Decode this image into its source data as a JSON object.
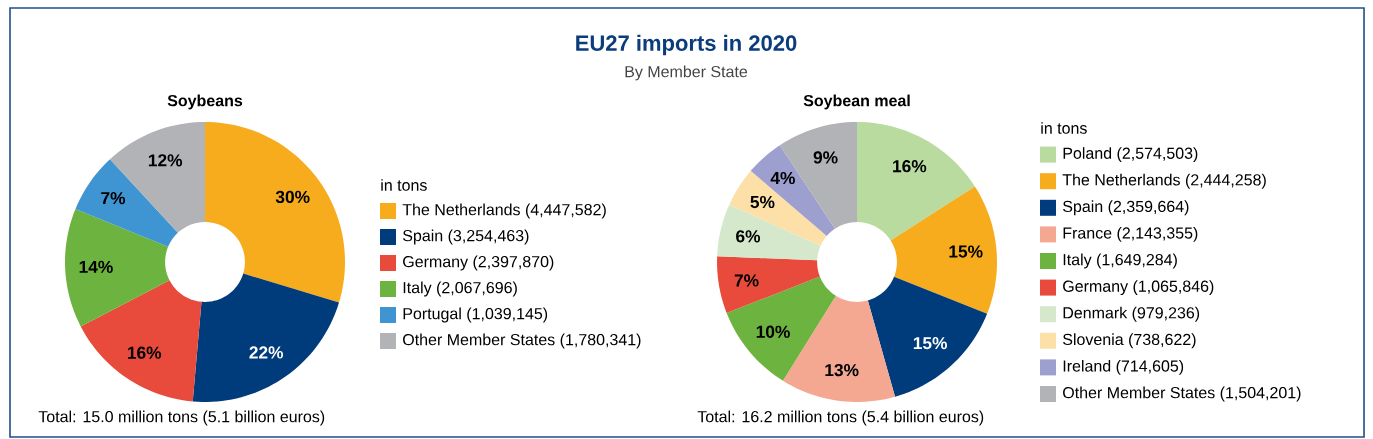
{
  "chart_data": [
    {
      "type": "donut",
      "title": "Soybeans",
      "legend_title": "in tons",
      "legend": "right",
      "categories": [
        "The Netherlands (4,447,582)",
        "Spain (3,254,463)",
        "Germany (2,397,870)",
        "Italy (2,067,696)",
        "Portugal (1,039,145)",
        "Other Member States (1,780,341)"
      ],
      "values": [
        29.68,
        21.72,
        16.0,
        13.8,
        6.93,
        11.88
      ],
      "value_labels": [
        "30%",
        "22%",
        "16%",
        "14%",
        "7%",
        "12%"
      ],
      "colors": [
        "#f7ac1e",
        "#003b7c",
        "#e84b3c",
        "#6db33f",
        "#3f94d2",
        "#b1b3b6"
      ],
      "annotations": [
        "EU27 imports in 2020",
        "By Member State",
        "Total: 15.0 million tons (5.1 billion euros)"
      ]
    },
    {
      "type": "donut",
      "title": "Soybean meal",
      "legend_title": "in tons",
      "legend": "right",
      "categories": [
        "Poland (2,574,503)",
        "The Netherlands (2,444,258)",
        "Spain (2,359,664)",
        "France (2,143,355)",
        "Italy (1,649,284)",
        "Germany (1,065,846)",
        "Denmark (979,236)",
        "Slovenia (738,622)",
        "Ireland (714,605)",
        "Other Member States (1,504,201)"
      ],
      "values": [
        15.92,
        15.11,
        14.59,
        13.25,
        10.2,
        6.59,
        6.05,
        4.57,
        4.42,
        9.3
      ],
      "value_labels": [
        "16%",
        "15%",
        "15%",
        "13%",
        "10%",
        "7%",
        "6%",
        "5%",
        "4%",
        "9%"
      ],
      "colors": [
        "#b9dba0",
        "#f7ac1e",
        "#003b7c",
        "#f4a892",
        "#6db33f",
        "#e84b3c",
        "#d5e8cc",
        "#fde0a8",
        "#9d9fcf",
        "#b1b3b6"
      ],
      "annotations": [
        "Total: 16.2 million tons (5.4 billion euros)"
      ]
    }
  ]
}
